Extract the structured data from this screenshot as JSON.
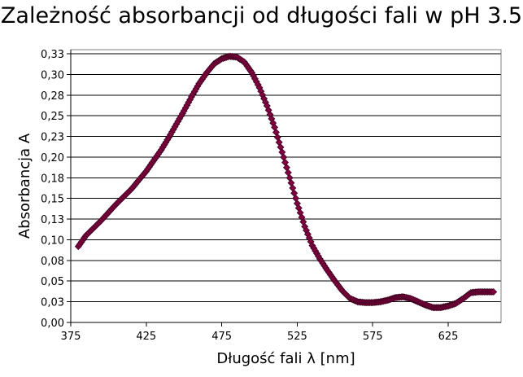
{
  "chart_data": {
    "type": "scatter",
    "title": "Zależność absorbancji od długości fali w pH 3.5",
    "xlabel": "Długość fali λ [nm]",
    "ylabel": "Absorbancja A",
    "xlim": [
      375,
      660
    ],
    "ylim": [
      0.0,
      0.33
    ],
    "x_ticks": [
      375,
      425,
      475,
      525,
      575,
      625
    ],
    "x_tick_labels": [
      "375",
      "425",
      "475",
      "525",
      "575",
      "625"
    ],
    "y_ticks": [
      0.0,
      0.025,
      0.05,
      0.075,
      0.1,
      0.125,
      0.15,
      0.175,
      0.2,
      0.225,
      0.25,
      0.275,
      0.3,
      0.325
    ],
    "y_tick_labels": [
      "0,00",
      "0,03",
      "0,05",
      "0,08",
      "0,10",
      "0,13",
      "0,15",
      "0,18",
      "0,20",
      "0,23",
      "0,25",
      "0,28",
      "0,30",
      "0,33"
    ],
    "grid": "horizontal",
    "legend": "none",
    "marker": "diamond",
    "marker_color": "#800040",
    "series": [
      {
        "x": [
          380,
          385,
          390,
          395,
          400,
          405,
          410,
          415,
          420,
          425,
          430,
          435,
          440,
          445,
          450,
          455,
          460,
          465,
          470,
          475,
          480,
          485,
          490,
          495,
          500,
          505,
          510,
          515,
          520,
          525,
          530,
          535,
          540,
          545,
          550,
          555,
          560,
          565,
          570,
          575,
          580,
          585,
          590,
          595,
          600,
          605,
          610,
          615,
          620,
          625,
          630,
          635,
          640,
          645,
          650,
          655
        ],
        "y": [
          0.092,
          0.105,
          0.114,
          0.123,
          0.133,
          0.143,
          0.152,
          0.161,
          0.172,
          0.183,
          0.196,
          0.209,
          0.224,
          0.24,
          0.256,
          0.273,
          0.289,
          0.302,
          0.313,
          0.319,
          0.322,
          0.321,
          0.315,
          0.302,
          0.284,
          0.262,
          0.236,
          0.206,
          0.175,
          0.144,
          0.116,
          0.093,
          0.077,
          0.063,
          0.05,
          0.038,
          0.029,
          0.025,
          0.024,
          0.024,
          0.025,
          0.027,
          0.03,
          0.031,
          0.029,
          0.025,
          0.021,
          0.018,
          0.018,
          0.02,
          0.023,
          0.029,
          0.036,
          0.037,
          0.037,
          0.037
        ]
      }
    ]
  }
}
